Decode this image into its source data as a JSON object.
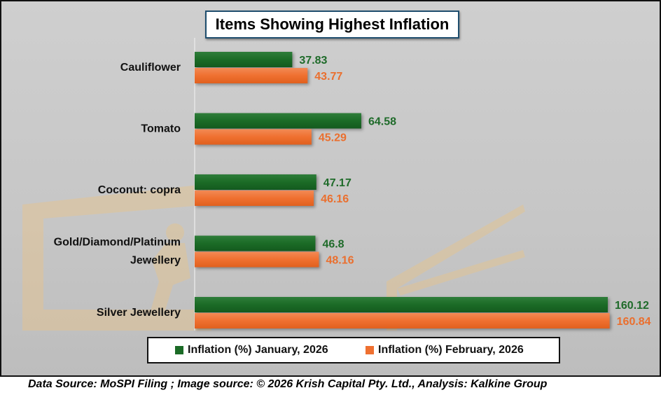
{
  "chart_data": {
    "type": "bar",
    "orientation": "horizontal",
    "title": "Items Showing Highest Inflation",
    "categories": [
      "Cauliflower",
      "Tomato",
      "Coconut: copra",
      "Gold/Diamond/Platinum Jewellery",
      "Silver Jewellery"
    ],
    "category_lines": [
      [
        "Cauliflower"
      ],
      [
        "Tomato"
      ],
      [
        "Coconut: copra"
      ],
      [
        "Gold/Diamond/Platinum",
        "Jewellery"
      ],
      [
        "Silver Jewellery"
      ]
    ],
    "series": [
      {
        "name": "Inflation (%) January, 2026",
        "color": "#1b6b26",
        "values": [
          37.83,
          64.58,
          47.17,
          46.8,
          160.12
        ],
        "labels": [
          "37.83",
          "64.58",
          "47.17",
          "46.8",
          "160.12"
        ]
      },
      {
        "name": "Inflation (%) February, 2026",
        "color": "#ef7030",
        "values": [
          43.77,
          45.29,
          46.16,
          48.16,
          160.84
        ],
        "labels": [
          "43.77",
          "45.29",
          "46.16",
          "48.16",
          "160.84"
        ]
      }
    ],
    "legend_position": "bottom",
    "grid": false,
    "xlim": [
      0,
      160.84
    ]
  },
  "footer": "Data Source: MoSPI Filing ; Image source: © 2026 Krish Capital Pty. Ltd., Analysis: Kalkine Group"
}
